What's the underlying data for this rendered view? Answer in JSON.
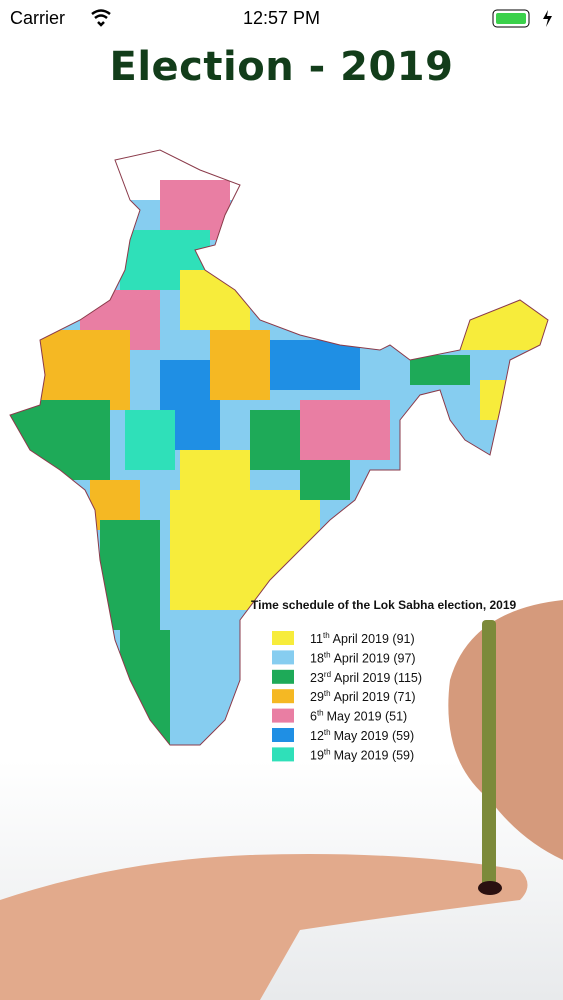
{
  "status_bar": {
    "carrier": "Carrier",
    "time": "12:57 PM"
  },
  "header": {
    "title": "Election - 2019"
  },
  "map": {
    "legend_title": "Time schedule of the Lok Sabha election, 2019",
    "legend": [
      {
        "day": "11",
        "suffix": "th",
        "rest": "April 2019 (91)",
        "color": "#f7ec3b"
      },
      {
        "day": "18",
        "suffix": "th",
        "rest": "April 2019 (97)",
        "color": "#86cdf0"
      },
      {
        "day": "23",
        "suffix": "rd",
        "rest": "April 2019 (115)",
        "color": "#1eaa58"
      },
      {
        "day": "29",
        "suffix": "th",
        "rest": "April 2019 (71)",
        "color": "#f5b823"
      },
      {
        "day": "6",
        "suffix": "th",
        "rest": "May 2019 (51)",
        "color": "#e97ea3"
      },
      {
        "day": "12",
        "suffix": "th",
        "rest": "May 2019 (59)",
        "color": "#1f8fe4"
      },
      {
        "day": "19",
        "suffix": "th",
        "rest": "May 2019 (59)",
        "color": "#2fe0b9"
      }
    ]
  }
}
